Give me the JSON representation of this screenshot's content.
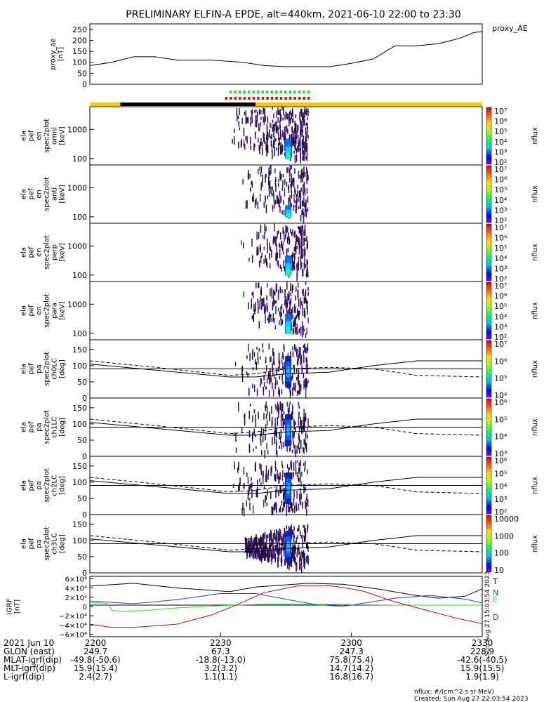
{
  "title": "PRELIMINARY ELFIN-A EPDE, alt=440km, 2021-06-10 22:00 to 23:30",
  "colors": {
    "axis": "#000000",
    "ae_line": "#000000",
    "bar_yellow": "#f2c800",
    "bar_black": "#000000",
    "bar_green": "#19e619",
    "bar_red": "#ff0000",
    "igrf_T": "#000000",
    "igrf_N": "#1f3fff",
    "igrf_E": "#22dd22",
    "igrf_D": "#dd0000"
  },
  "panels": {
    "ae": {
      "ylabel_lines": [
        "proxy_ae",
        "[nT]"
      ],
      "legend": "proxy_AE",
      "yticks": [
        "0",
        "50",
        "100",
        "150",
        "200",
        "250"
      ]
    },
    "energy_ticks": [
      "100",
      "1000"
    ],
    "pa_ticks": [
      "0",
      "50",
      "100",
      "150"
    ],
    "spectra": [
      {
        "id": "omni",
        "ylabel_lines": [
          "ela",
          "pef",
          "en",
          "spec2plot",
          "omni",
          "[keV]"
        ],
        "cbar_ticks": [
          "10²",
          "10³",
          "10⁴",
          "10⁵",
          "10⁶",
          "10⁷"
        ]
      },
      {
        "id": "anti",
        "ylabel_lines": [
          "ela",
          "pef",
          "en",
          "spec2plot",
          "anti",
          "[keV]"
        ],
        "cbar_ticks": [
          "10²",
          "10³",
          "10⁴",
          "10⁵",
          "10⁶",
          "10⁷"
        ]
      },
      {
        "id": "perp",
        "ylabel_lines": [
          "ela",
          "pef",
          "en",
          "spec2plot",
          "perp",
          "[keV]"
        ],
        "cbar_ticks": [
          "10²",
          "10³",
          "10⁴",
          "10⁵",
          "10⁶",
          "10⁷"
        ]
      },
      {
        "id": "para",
        "ylabel_lines": [
          "ela",
          "pef",
          "en",
          "spec2plot",
          "para",
          "[keV]"
        ],
        "cbar_ticks": [
          "10²",
          "10³",
          "10⁴",
          "10⁵",
          "10⁶",
          "10⁷"
        ]
      }
    ],
    "pitch": [
      {
        "id": "ch0LC",
        "ylabel_lines": [
          "ela",
          "pef",
          "pa",
          "spec2plot",
          "ch0LC",
          "[deg]"
        ],
        "cbar_ticks": [
          "10⁴",
          "10⁵",
          "10⁶",
          "10⁷"
        ]
      },
      {
        "id": "ch1LC",
        "ylabel_lines": [
          "ela",
          "pef",
          "pa",
          "spec2plot",
          "ch1LC",
          "[deg]"
        ],
        "cbar_ticks": [
          "10³",
          "10⁴",
          "10⁵",
          "10⁶"
        ]
      },
      {
        "id": "ch2LC",
        "ylabel_lines": [
          "ela",
          "pef",
          "pa",
          "spec2plot",
          "ch2LC",
          "[deg]"
        ],
        "cbar_ticks": [
          "10²",
          "10³",
          "10⁴",
          "10⁵",
          "10⁶"
        ]
      },
      {
        "id": "ch3LC",
        "ylabel_lines": [
          "ela",
          "pef",
          "pa",
          "spec2plot",
          "ch3LC",
          "[deg]"
        ],
        "cbar_ticks": [
          "10",
          "100",
          "1000",
          "10000"
        ]
      }
    ],
    "cbar_label": "nflux",
    "igrf": {
      "ylabel_lines": [
        "IGRF",
        "[nT]"
      ],
      "yticks": [
        "−6×10⁴",
        "−4×10⁴",
        "−2×10⁴",
        "0",
        "2×10⁴",
        "4×10⁴",
        "6×10⁴"
      ],
      "legend": [
        "T",
        "N",
        "E",
        "D"
      ]
    }
  },
  "footer": {
    "rows": [
      {
        "label": "2021 Jun 10",
        "values": [
          "2200",
          "2230",
          "2300",
          "2330"
        ]
      },
      {
        "label": "GLON (east)",
        "values": [
          "249.7",
          "67.3",
          "247.3",
          "228.9"
        ]
      },
      {
        "label": "MLAT-igrf(dip)",
        "values": [
          "-49.8(-50.6)",
          "-18.8(-13.0)",
          "75.8(75.4)",
          "-42.6(-40.5)"
        ]
      },
      {
        "label": "MLT-igrf(dip)",
        "values": [
          "15.9(15.4)",
          "3.2(3.2)",
          "14.7(14.2)",
          "15.9(15.5)"
        ]
      },
      {
        "label": "L-igrf(dip)",
        "values": [
          "2.4(2.7)",
          "1.1(1.1)",
          "16.8(16.7)",
          "1.9(1.9)"
        ]
      }
    ],
    "units_note": "nflux: #/(cm^2 s sr MeV)",
    "created": "Created: Sun Aug 27 22:03:54 2023",
    "side_stamp": "Sun Aug 27 15:03:54 2023"
  },
  "chart_data": {
    "type": "line",
    "title": "PRELIMINARY ELFIN-A EPDE, alt=440km, 2021-06-10 22:00 to 23:30",
    "x_unit": "minutes after 2021-06-10 22:00 UT",
    "xlim": [
      0,
      90
    ],
    "xticks": [
      "2200",
      "2230",
      "2300",
      "2330"
    ],
    "proxy_ae": {
      "ylabel": "proxy_ae [nT]",
      "ylim": [
        0,
        275
      ],
      "x": [
        0,
        5,
        10,
        15,
        20,
        25,
        28,
        35,
        40,
        45,
        50,
        55,
        60,
        65,
        70,
        72,
        75,
        80,
        85,
        88,
        90
      ],
      "values": [
        85,
        100,
        125,
        125,
        110,
        110,
        110,
        100,
        85,
        80,
        80,
        80,
        95,
        115,
        175,
        175,
        175,
        185,
        210,
        235,
        240
      ]
    },
    "igrf": {
      "ylabel": "IGRF [nT]",
      "ylim": [
        -65000,
        65000
      ],
      "series": [
        {
          "name": "T",
          "x": [
            0,
            10,
            20,
            32,
            38,
            50,
            58,
            66,
            74,
            80,
            86,
            90
          ],
          "values": [
            44000,
            50000,
            40000,
            32000,
            42000,
            50000,
            48000,
            38000,
            25000,
            18000,
            22000,
            38000
          ]
        },
        {
          "name": "N",
          "x": [
            0,
            5,
            10,
            20,
            30,
            38,
            46,
            52,
            58,
            62,
            70,
            78,
            86,
            90
          ],
          "values": [
            12000,
            9000,
            6000,
            15000,
            28000,
            28000,
            14000,
            4000,
            500,
            6000,
            18000,
            24000,
            16000,
            8000
          ]
        },
        {
          "name": "E",
          "x": [
            0,
            2,
            4,
            5,
            7,
            12,
            20,
            30,
            40,
            50,
            60,
            70,
            80,
            90
          ],
          "values": [
            8000,
            8000,
            7000,
            -8000,
            -11000,
            -9000,
            -3000,
            2000,
            5000,
            5000,
            4000,
            3000,
            3000,
            3000
          ]
        },
        {
          "name": "D",
          "x": [
            0,
            5,
            10,
            20,
            28,
            34,
            40,
            48,
            55,
            62,
            70,
            78,
            84,
            90
          ],
          "values": [
            -38000,
            -45000,
            -45000,
            -38000,
            -18000,
            5000,
            30000,
            45000,
            45000,
            35000,
            10000,
            -10000,
            -25000,
            -37000
          ]
        }
      ]
    },
    "pitch_lines": {
      "loss_cone": {
        "x": [
          0,
          32,
          38,
          45,
          55,
          65,
          75,
          90
        ],
        "values": [
          105,
          65,
          65,
          75,
          80,
          100,
          115,
          115
        ]
      },
      "anti_loss_cone": {
        "x": [
          0,
          15,
          32,
          38,
          45,
          55,
          65,
          75,
          90
        ],
        "values": [
          115,
          95,
          70,
          75,
          90,
          95,
          90,
          70,
          65
        ]
      },
      "reference_deg": 90
    },
    "flux_annotations": {
      "green_bar": {
        "start": 32,
        "end": 50
      },
      "red_bar": {
        "start": 31,
        "end": 50
      },
      "black_segment": {
        "start": 7,
        "end": 38
      }
    }
  }
}
